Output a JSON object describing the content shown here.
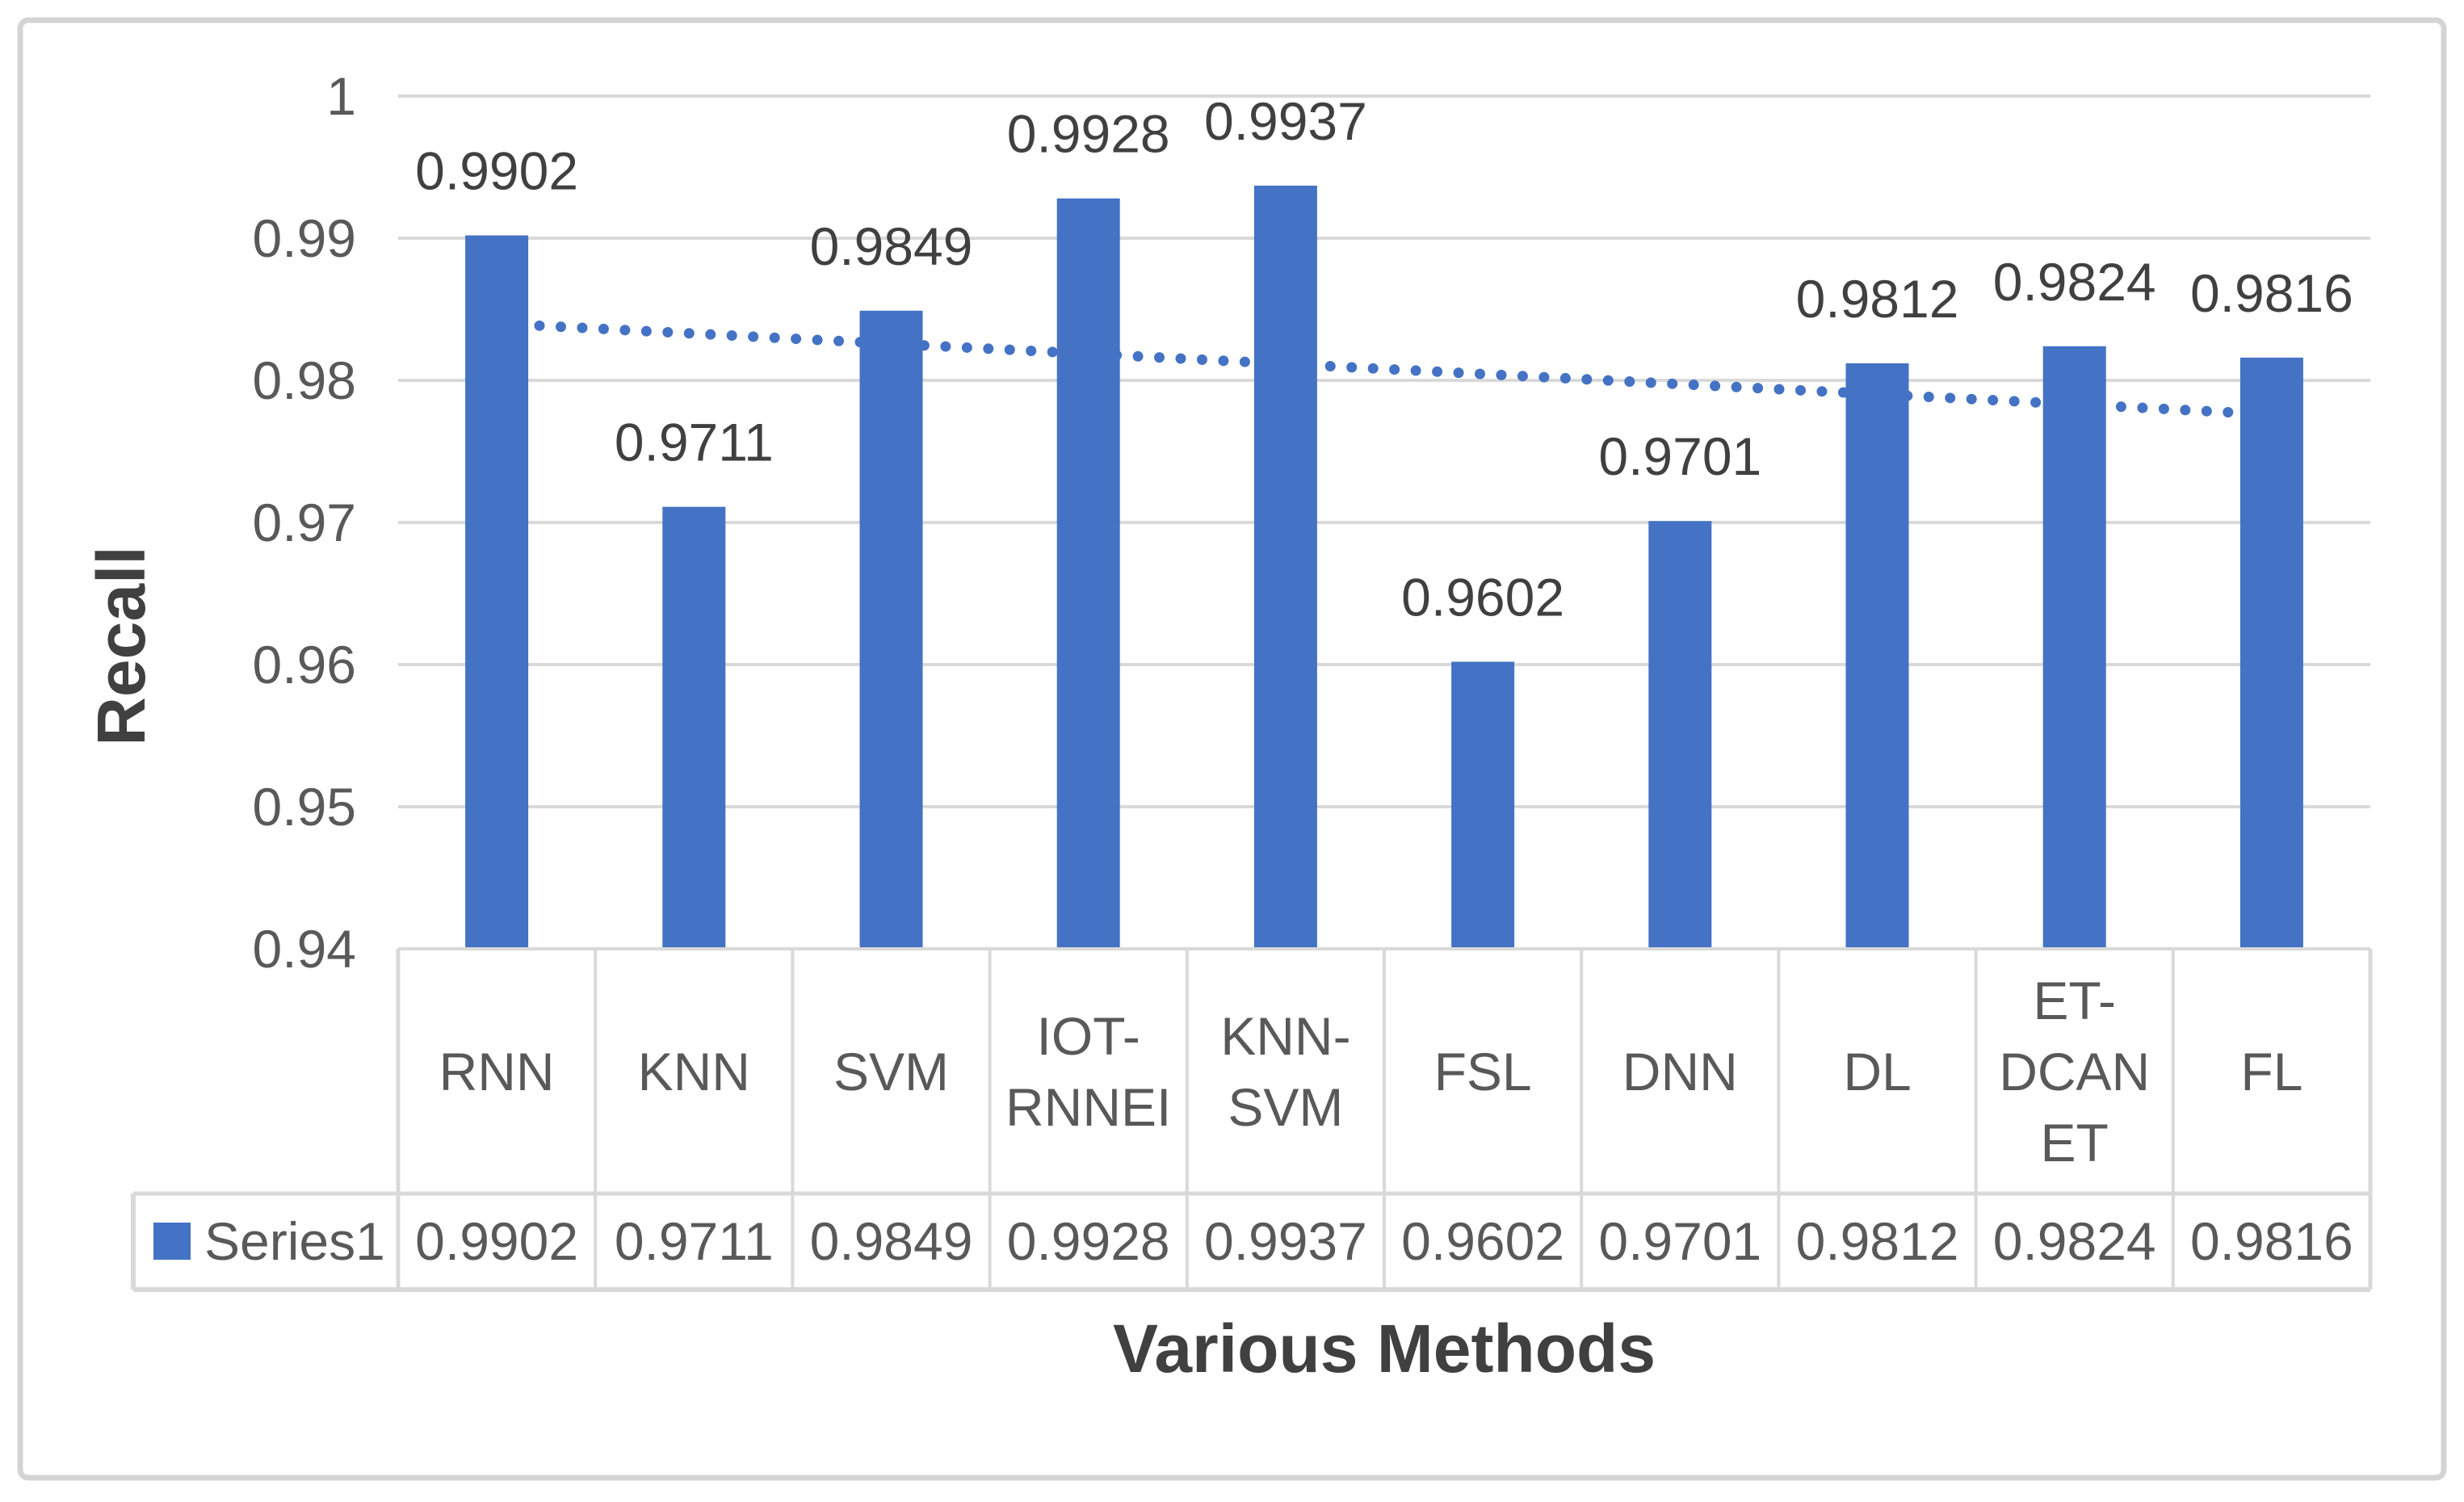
{
  "chart_data": {
    "type": "bar",
    "title": "",
    "ylabel": "Recall",
    "xlabel": "Various Methods",
    "series_name": "Series1",
    "categories": [
      "RNN",
      "KNN",
      "SVM",
      "IOT-RNNEI",
      "KNN-SVM",
      "FSL",
      "DNN",
      "DL",
      "ET-DCANET",
      "FL"
    ],
    "categories_wrapped": [
      [
        "RNN"
      ],
      [
        "KNN"
      ],
      [
        "SVM"
      ],
      [
        "IOT-",
        "RNNEI"
      ],
      [
        "KNN-",
        "SVM"
      ],
      [
        "FSL"
      ],
      [
        "DNN"
      ],
      [
        "DL"
      ],
      [
        "ET-",
        "DCAN",
        "ET"
      ],
      [
        "FL"
      ]
    ],
    "series": [
      {
        "name": "Series1",
        "values": [
          0.9902,
          0.9711,
          0.9849,
          0.9928,
          0.9937,
          0.9602,
          0.9701,
          0.9812,
          0.9824,
          0.9816
        ]
      }
    ],
    "value_labels": [
      "0.9902",
      "0.9711",
      "0.9849",
      "0.9928",
      "0.9937",
      "0.9602",
      "0.9701",
      "0.9812",
      "0.9824",
      "0.9816"
    ],
    "ylim": [
      0.94,
      1.0
    ],
    "yticks": [
      1,
      0.99,
      0.98,
      0.97,
      0.96,
      0.95,
      0.94
    ],
    "ytick_labels": [
      "1",
      "0.99",
      "0.98",
      "0.97",
      "0.96",
      "0.95",
      "0.94"
    ],
    "grid": true,
    "data_table": true,
    "legend_position": "table-left",
    "trendline": {
      "type": "linear",
      "style": "dotted",
      "start_value": 0.984,
      "end_value": 0.9776
    },
    "colors": {
      "bar": "#4472C4",
      "trendline": "#4472C4",
      "gridline": "#D9D9D9",
      "table_border": "#D9D9D9",
      "tick_text": "#595959",
      "data_label_text": "#404040",
      "axis_title_text": "#404040",
      "frame_border": "#D4D4D4"
    }
  }
}
